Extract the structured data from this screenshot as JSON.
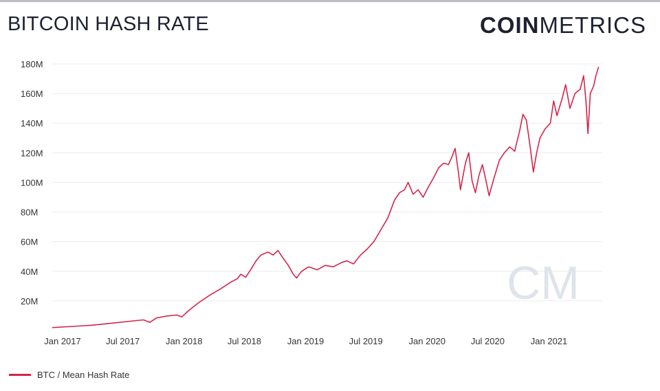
{
  "header": {
    "title": "BITCOIN HASH RATE",
    "brand_bold": "COIN",
    "brand_light": "METRICS"
  },
  "colors": {
    "series": "#d6234a",
    "grid": "#ececec",
    "watermark": "#dfe3ec"
  },
  "watermark": {
    "text": "CM"
  },
  "chart_data": {
    "type": "line",
    "title": "",
    "xlabel": "",
    "ylabel": "",
    "x_range": [
      "2016-12-01",
      "2021-06-10"
    ],
    "ylim": [
      0,
      180000000
    ],
    "y_ticks": [
      {
        "value": 20000000,
        "label": "20M"
      },
      {
        "value": 40000000,
        "label": "40M"
      },
      {
        "value": 60000000,
        "label": "60M"
      },
      {
        "value": 80000000,
        "label": "80M"
      },
      {
        "value": 100000000,
        "label": "100M"
      },
      {
        "value": 120000000,
        "label": "120M"
      },
      {
        "value": 140000000,
        "label": "140M"
      },
      {
        "value": 160000000,
        "label": "160M"
      },
      {
        "value": 180000000,
        "label": "180M"
      }
    ],
    "x_ticks": [
      {
        "date": "2017-01-01",
        "label": "Jan 2017"
      },
      {
        "date": "2017-07-01",
        "label": "Jul 2017"
      },
      {
        "date": "2018-01-01",
        "label": "Jan 2018"
      },
      {
        "date": "2018-07-01",
        "label": "Jul 2018"
      },
      {
        "date": "2019-01-01",
        "label": "Jan 2019"
      },
      {
        "date": "2019-07-01",
        "label": "Jul 2019"
      },
      {
        "date": "2020-01-01",
        "label": "Jan 2020"
      },
      {
        "date": "2020-07-01",
        "label": "Jul 2020"
      },
      {
        "date": "2021-01-01",
        "label": "Jan 2021"
      }
    ],
    "grid": true,
    "legend_position": "bottom-left",
    "series": [
      {
        "name": "BTC / Mean Hash Rate",
        "points": [
          [
            "2016-12-01",
            2000000
          ],
          [
            "2017-02-01",
            2800000
          ],
          [
            "2017-04-01",
            3600000
          ],
          [
            "2017-06-01",
            5000000
          ],
          [
            "2017-08-01",
            6500000
          ],
          [
            "2017-09-01",
            7200000
          ],
          [
            "2017-09-20",
            5500000
          ],
          [
            "2017-10-10",
            8500000
          ],
          [
            "2017-11-10",
            9800000
          ],
          [
            "2017-12-10",
            10500000
          ],
          [
            "2017-12-25",
            9200000
          ],
          [
            "2018-01-15",
            13500000
          ],
          [
            "2018-02-15",
            19000000
          ],
          [
            "2018-03-20",
            24000000
          ],
          [
            "2018-04-20",
            28000000
          ],
          [
            "2018-05-20",
            32500000
          ],
          [
            "2018-06-10",
            35000000
          ],
          [
            "2018-06-20",
            38000000
          ],
          [
            "2018-07-05",
            36000000
          ],
          [
            "2018-07-20",
            41000000
          ],
          [
            "2018-08-05",
            47000000
          ],
          [
            "2018-08-20",
            51000000
          ],
          [
            "2018-09-10",
            53000000
          ],
          [
            "2018-09-25",
            51000000
          ],
          [
            "2018-10-10",
            54000000
          ],
          [
            "2018-10-25",
            49000000
          ],
          [
            "2018-11-10",
            44000000
          ],
          [
            "2018-11-25",
            38000000
          ],
          [
            "2018-12-05",
            35500000
          ],
          [
            "2018-12-20",
            40000000
          ],
          [
            "2019-01-10",
            43000000
          ],
          [
            "2019-02-05",
            41000000
          ],
          [
            "2019-03-01",
            44000000
          ],
          [
            "2019-03-25",
            43000000
          ],
          [
            "2019-04-20",
            46000000
          ],
          [
            "2019-05-05",
            47000000
          ],
          [
            "2019-05-25",
            45000000
          ],
          [
            "2019-06-15",
            51000000
          ],
          [
            "2019-07-05",
            55000000
          ],
          [
            "2019-07-25",
            60000000
          ],
          [
            "2019-08-15",
            68000000
          ],
          [
            "2019-09-05",
            76000000
          ],
          [
            "2019-09-25",
            88000000
          ],
          [
            "2019-10-10",
            93000000
          ],
          [
            "2019-10-25",
            95000000
          ],
          [
            "2019-11-05",
            100000000
          ],
          [
            "2019-11-20",
            92000000
          ],
          [
            "2019-12-05",
            95000000
          ],
          [
            "2019-12-20",
            90000000
          ],
          [
            "2020-01-05",
            97000000
          ],
          [
            "2020-01-20",
            103000000
          ],
          [
            "2020-02-05",
            110000000
          ],
          [
            "2020-02-20",
            113000000
          ],
          [
            "2020-03-05",
            112000000
          ],
          [
            "2020-03-15",
            117000000
          ],
          [
            "2020-03-25",
            123000000
          ],
          [
            "2020-04-05",
            105000000
          ],
          [
            "2020-04-10",
            95000000
          ],
          [
            "2020-04-25",
            113000000
          ],
          [
            "2020-05-05",
            120000000
          ],
          [
            "2020-05-15",
            101000000
          ],
          [
            "2020-05-25",
            93000000
          ],
          [
            "2020-06-05",
            105000000
          ],
          [
            "2020-06-15",
            112000000
          ],
          [
            "2020-06-25",
            102000000
          ],
          [
            "2020-07-05",
            91000000
          ],
          [
            "2020-07-20",
            103000000
          ],
          [
            "2020-08-05",
            115000000
          ],
          [
            "2020-08-20",
            120000000
          ],
          [
            "2020-09-05",
            124000000
          ],
          [
            "2020-09-20",
            121000000
          ],
          [
            "2020-10-05",
            135000000
          ],
          [
            "2020-10-15",
            146000000
          ],
          [
            "2020-10-25",
            142000000
          ],
          [
            "2020-11-05",
            125000000
          ],
          [
            "2020-11-15",
            107000000
          ],
          [
            "2020-11-25",
            120000000
          ],
          [
            "2020-12-05",
            130000000
          ],
          [
            "2020-12-20",
            136000000
          ],
          [
            "2021-01-05",
            140000000
          ],
          [
            "2021-01-15",
            155000000
          ],
          [
            "2021-01-25",
            145000000
          ],
          [
            "2021-02-10",
            157000000
          ],
          [
            "2021-02-20",
            166000000
          ],
          [
            "2021-03-05",
            150000000
          ],
          [
            "2021-03-20",
            160000000
          ],
          [
            "2021-04-05",
            163000000
          ],
          [
            "2021-04-15",
            172000000
          ],
          [
            "2021-04-22",
            155000000
          ],
          [
            "2021-04-28",
            133000000
          ],
          [
            "2021-05-05",
            160000000
          ],
          [
            "2021-05-15",
            165000000
          ],
          [
            "2021-05-22",
            172000000
          ],
          [
            "2021-05-30",
            178000000
          ]
        ]
      }
    ]
  }
}
